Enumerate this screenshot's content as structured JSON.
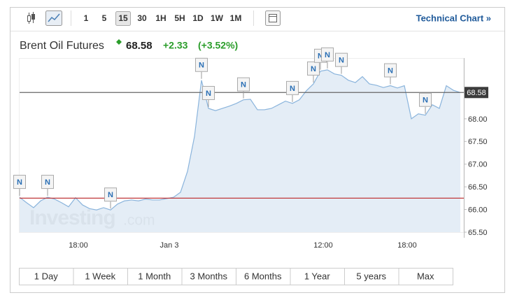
{
  "toolbar": {
    "intervals": [
      "1",
      "5",
      "15",
      "30",
      "1H",
      "5H",
      "1D",
      "1W",
      "1M"
    ],
    "selected": "15",
    "link": "Technical Chart »"
  },
  "header": {
    "name": "Brent Oil Futures",
    "price": "68.58",
    "change": "+2.33",
    "change_pct": "(+3.52%)"
  },
  "watermark": {
    "brand": "Investing",
    "suffix": ".com"
  },
  "ranges": [
    "1 Day",
    "1 Week",
    "1 Month",
    "3 Months",
    "6 Months",
    "1 Year",
    "5 years",
    "Max"
  ],
  "chart_data": {
    "type": "line",
    "color": "#8ab4dc",
    "fill": "#dde8f4",
    "categories": [
      null,
      null,
      null,
      null,
      null,
      null,
      null,
      null,
      "18:00",
      null,
      null,
      null,
      null,
      null,
      null,
      null,
      null,
      null,
      null,
      null,
      null,
      "Jan 3",
      null,
      null,
      null,
      null,
      null,
      null,
      null,
      null,
      null,
      null,
      null,
      null,
      null,
      null,
      null,
      null,
      null,
      null,
      null,
      null,
      null,
      "12:00",
      null,
      null,
      null,
      null,
      null,
      null,
      null,
      null,
      null,
      null,
      null,
      "18:00",
      null,
      null,
      null,
      null,
      null,
      null,
      null,
      null
    ],
    "values": [
      66.27,
      66.15,
      66.04,
      66.19,
      66.27,
      66.23,
      66.15,
      66.06,
      66.26,
      66.1,
      66.02,
      65.99,
      66.04,
      65.99,
      66.12,
      66.19,
      66.21,
      66.19,
      66.23,
      66.21,
      66.21,
      66.24,
      66.27,
      66.38,
      66.84,
      67.61,
      68.85,
      68.23,
      68.18,
      68.23,
      68.28,
      68.34,
      68.42,
      68.43,
      68.2,
      68.2,
      68.23,
      68.31,
      68.39,
      68.34,
      68.42,
      68.62,
      68.77,
      69.05,
      69.08,
      68.99,
      68.96,
      68.85,
      68.8,
      68.93,
      68.77,
      68.74,
      68.69,
      68.73,
      68.68,
      68.73,
      68.0,
      68.11,
      68.08,
      68.31,
      68.23,
      68.73,
      68.63,
      68.58
    ],
    "ylim": [
      65.5,
      69.34
    ],
    "yticks": [
      {
        "value": 65.5,
        "label": "65.50"
      },
      {
        "value": 66,
        "label": "66.00"
      },
      {
        "value": 66.5,
        "label": "66.50"
      },
      {
        "value": 67,
        "label": "67.00"
      },
      {
        "value": 67.5,
        "label": "67.50"
      },
      {
        "value": 68,
        "label": "68.00"
      }
    ],
    "reference_lines": [
      {
        "value": 68.58,
        "color": "#666666"
      },
      {
        "value": 66.25,
        "color": "#c0393b"
      }
    ],
    "annotations": [
      {
        "index": 0,
        "text": "N"
      },
      {
        "index": 4,
        "text": "N"
      },
      {
        "index": 13,
        "text": "N"
      },
      {
        "index": 26,
        "text": "N"
      },
      {
        "index": 27,
        "text": "N"
      },
      {
        "index": 32,
        "text": "N"
      },
      {
        "index": 39,
        "text": "N"
      },
      {
        "index": 42,
        "text": "N"
      },
      {
        "index": 43,
        "text": "N"
      },
      {
        "index": 44,
        "text": "N"
      },
      {
        "index": 46,
        "text": "N"
      },
      {
        "index": 53,
        "text": "N"
      },
      {
        "index": 58,
        "text": "N"
      }
    ]
  }
}
